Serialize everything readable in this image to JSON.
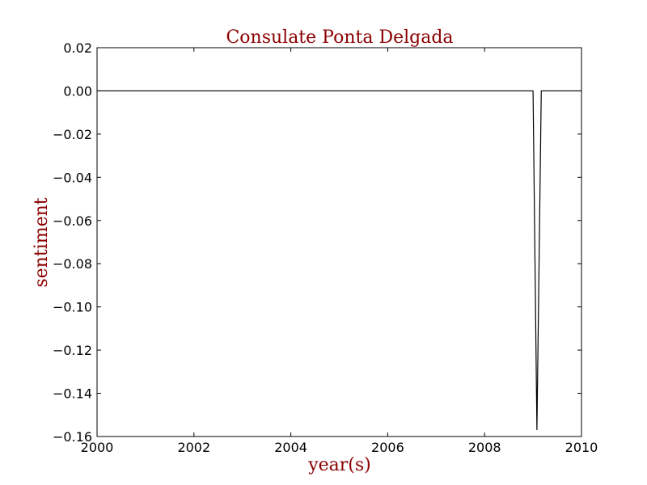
{
  "chart_data": {
    "type": "line",
    "title": "Consulate Ponta Delgada",
    "xlabel": "year(s)",
    "ylabel": "sentiment",
    "xlim": [
      2000,
      2010
    ],
    "ylim": [
      -0.16,
      0.02
    ],
    "xticks": [
      2000,
      2002,
      2004,
      2006,
      2008,
      2010
    ],
    "xtick_labels": [
      "2000",
      "2002",
      "2004",
      "2006",
      "2008",
      "2010"
    ],
    "yticks": [
      0.02,
      0.0,
      -0.02,
      -0.04,
      -0.06,
      -0.08,
      -0.1,
      -0.12,
      -0.14,
      -0.16
    ],
    "ytick_labels": [
      "0.02",
      "0.00",
      "−0.02",
      "−0.04",
      "−0.06",
      "−0.08",
      "−0.10",
      "−0.12",
      "−0.14",
      "−0.16"
    ],
    "grid": false,
    "series": [
      {
        "x": [
          2000.0,
          2009.0,
          2009.08,
          2009.17,
          2009.9,
          2010.0
        ],
        "y": [
          0.0,
          0.0,
          -0.157,
          0.0,
          0.0,
          0.0
        ],
        "color": "#000000"
      }
    ],
    "title_color": "#8b0000",
    "label_color": "#8b0000"
  }
}
